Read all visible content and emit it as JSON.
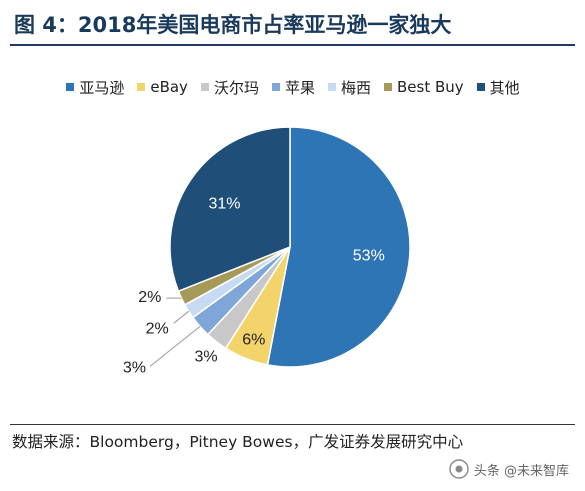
{
  "figure": {
    "title": "图 4：2018年美国电商市占率亚马逊一家独大",
    "source": "数据来源：Bloomberg，Pitney Bowes，广发证券发展研究中心",
    "watermark": "头条 @未来智库"
  },
  "chart_data": {
    "type": "pie",
    "title": "",
    "legend_position": "top",
    "slices": [
      {
        "label": "亚马逊",
        "value": 53,
        "value_label": "53%",
        "color": "#2e75b6"
      },
      {
        "label": "eBay",
        "value": 6,
        "value_label": "6%",
        "color": "#f2d46b"
      },
      {
        "label": "沃尔玛",
        "value": 3,
        "value_label": "3%",
        "color": "#c8c8c8"
      },
      {
        "label": "苹果",
        "value": 3,
        "value_label": "3%",
        "color": "#7ea6d9"
      },
      {
        "label": "梅西",
        "value": 2,
        "value_label": "2%",
        "color": "#c6dbf1"
      },
      {
        "label": "Best Buy",
        "value": 2,
        "value_label": "2%",
        "color": "#a59a5a"
      },
      {
        "label": "其他",
        "value": 31,
        "value_label": "31%",
        "color": "#1f4e79"
      }
    ]
  }
}
